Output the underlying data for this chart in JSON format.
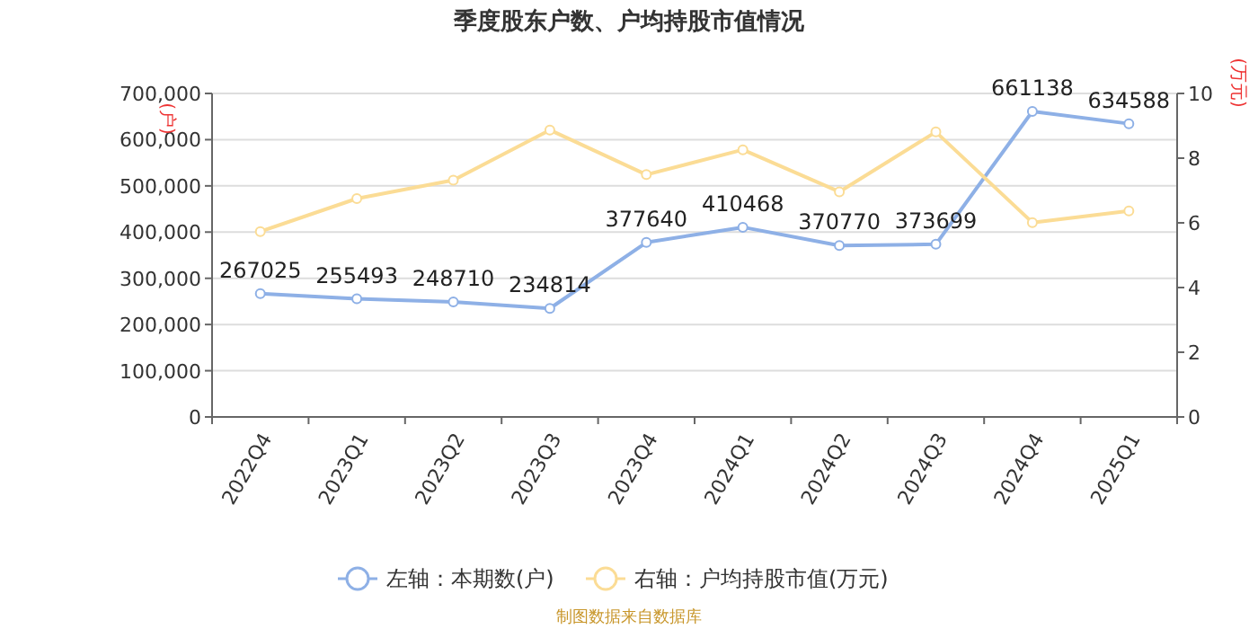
{
  "chart_data": {
    "type": "line",
    "title": "季度股东户数、户均持股市值情况",
    "categories": [
      "2022Q4",
      "2023Q1",
      "2023Q2",
      "2023Q3",
      "2023Q4",
      "2024Q1",
      "2024Q2",
      "2024Q3",
      "2024Q4",
      "2025Q1"
    ],
    "series": [
      {
        "name": "左轴：本期数(户)",
        "color": "#8eb0e6",
        "values": [
          267025,
          255493,
          248710,
          234814,
          377640,
          410468,
          370770,
          373699,
          661138,
          634588
        ],
        "value_labels": [
          "267025",
          "255493",
          "248710",
          "234814",
          "377640",
          "410468",
          "370770",
          "373699",
          "661138",
          "634588"
        ]
      },
      {
        "name": "右轴：户均持股市值(万元)",
        "color": "#fbdc95",
        "axis": "y2",
        "values": [
          5.73,
          6.75,
          7.32,
          8.87,
          7.49,
          8.26,
          6.96,
          8.81,
          6.01,
          6.37
        ]
      }
    ],
    "ylabel": "(户)",
    "y2label": "(万元)",
    "ylim": [
      0,
      700000
    ],
    "yticks": [
      0,
      {
        "value": 100000,
        "label": "100,000"
      },
      {
        "value": 200000,
        "label": "200,000"
      },
      {
        "value": 300000,
        "label": "300,000"
      },
      {
        "value": 400000,
        "label": "400,000"
      },
      {
        "value": 500000,
        "label": "500,000"
      },
      {
        "value": 600000,
        "label": "600,000"
      },
      {
        "value": 700000,
        "label": "700,000"
      }
    ],
    "y2lim": [
      0,
      10
    ],
    "y2ticks": [
      0,
      2,
      4,
      6,
      8,
      10
    ],
    "grid": "y",
    "legend": "bottom",
    "marker": "circle",
    "annotations": [
      "制图数据来自数据库"
    ]
  }
}
